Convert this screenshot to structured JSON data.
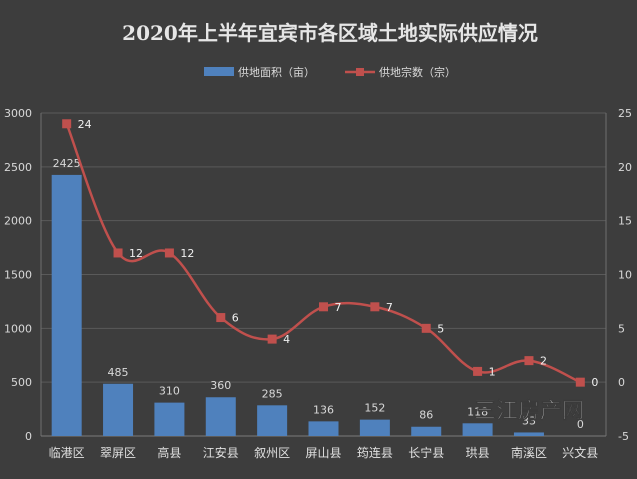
{
  "chart_data": {
    "type": "bar+line",
    "title": "2020年上半年宜宾市各区域土地实际供应情况",
    "categories": [
      "临港区",
      "翠屏区",
      "高县",
      "江安县",
      "叙州区",
      "屏山县",
      "筠连县",
      "长宁县",
      "珙县",
      "南溪区",
      "兴文县"
    ],
    "series": [
      {
        "name": "供地面积（亩）",
        "type": "bar",
        "axis": "left",
        "color": "#4f81bd",
        "values": [
          2425,
          485,
          310,
          360,
          285,
          136,
          152,
          86,
          118,
          33,
          0
        ],
        "labels": [
          "2425",
          "485",
          "310",
          "360",
          "285",
          "136",
          "152",
          "86",
          "118",
          "33",
          "0"
        ]
      },
      {
        "name": "供地宗数（宗）",
        "type": "line",
        "axis": "right",
        "color": "#c0504d",
        "values": [
          24,
          12,
          12,
          6,
          4,
          7,
          7,
          5,
          1,
          2,
          0
        ],
        "labels": [
          "24",
          "12",
          "12",
          "6",
          "4",
          "7",
          "7",
          "5",
          "1",
          "2",
          "0"
        ]
      }
    ],
    "y_left": {
      "min": 0,
      "max": 3000,
      "step": 500,
      "ticks": [
        "0",
        "500",
        "1000",
        "1500",
        "2000",
        "2500",
        "3000"
      ]
    },
    "y_right": {
      "min": -5,
      "max": 25,
      "step": 5,
      "ticks": [
        "-5",
        "0",
        "5",
        "10",
        "15",
        "20",
        "25"
      ]
    },
    "grid": true,
    "legend_position": "top-center"
  },
  "watermark": {
    "text": "三江房产网"
  }
}
